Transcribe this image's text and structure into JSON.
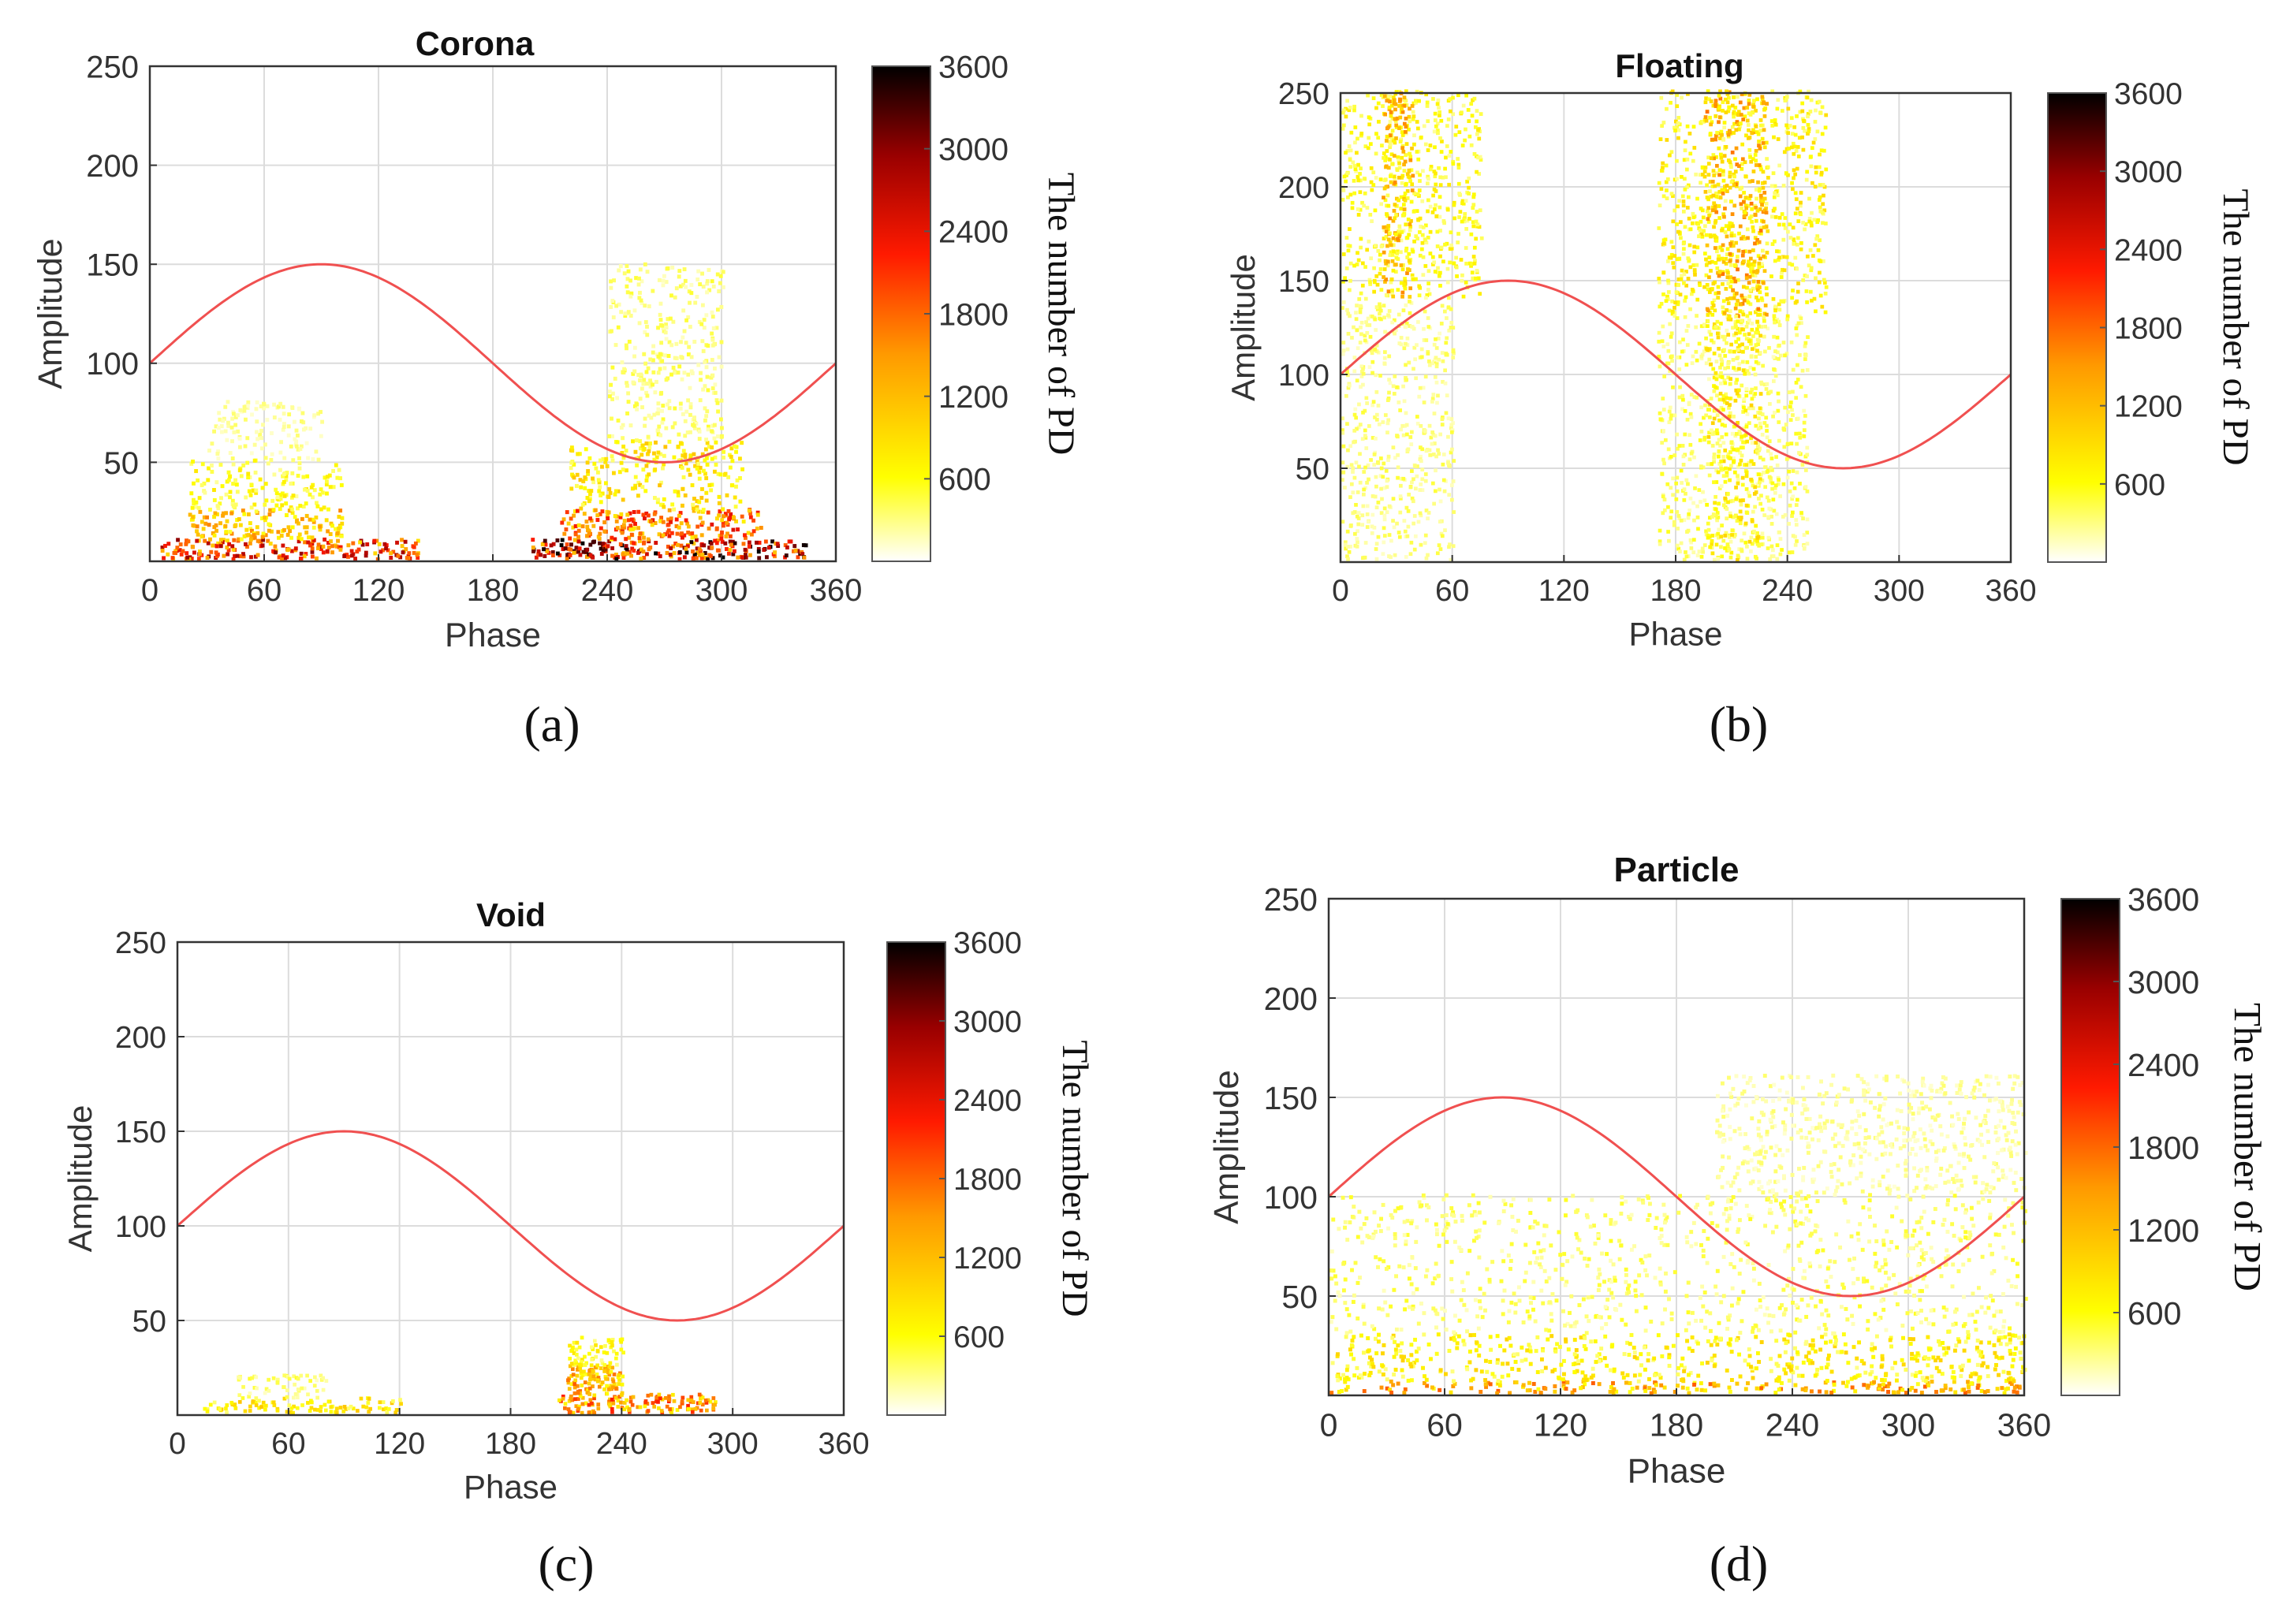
{
  "colorbar": {
    "ticks": [
      600,
      1200,
      1800,
      2400,
      3000,
      3600
    ],
    "label": "The number of PD",
    "range": [
      0,
      3600
    ],
    "stops": [
      "#ffffff",
      "#ffff00",
      "#ff9900",
      "#ff1a00",
      "#990000",
      "#000000"
    ]
  },
  "chart_data": [
    {
      "type": "heatmap",
      "title": "Corona",
      "caption": "(a)",
      "xlabel": "Phase",
      "ylabel": "Amplitude",
      "xlim": [
        0,
        360
      ],
      "ylim": [
        0,
        250
      ],
      "xticks": [
        0,
        60,
        120,
        180,
        240,
        300,
        360
      ],
      "yticks": [
        50,
        100,
        150,
        200,
        250
      ],
      "grid": true,
      "sine_reference": {
        "x": [
          0,
          90,
          180,
          270,
          360
        ],
        "y": [
          100,
          150,
          100,
          50,
          100
        ],
        "color": "#f05050"
      },
      "density_regions": [
        {
          "phase": [
            5,
            140
          ],
          "amplitude": [
            0,
            10
          ],
          "count": 2400
        },
        {
          "phase": [
            20,
            100
          ],
          "amplitude": [
            10,
            25
          ],
          "count": 1300
        },
        {
          "phase": [
            20,
            100
          ],
          "amplitude": [
            25,
            50
          ],
          "count": 650
        },
        {
          "phase": [
            30,
            90
          ],
          "amplitude": [
            50,
            80
          ],
          "count": 300
        },
        {
          "phase": [
            200,
            345
          ],
          "amplitude": [
            0,
            10
          ],
          "count": 3000
        },
        {
          "phase": [
            215,
            320
          ],
          "amplitude": [
            10,
            25
          ],
          "count": 2000
        },
        {
          "phase": [
            220,
            310
          ],
          "amplitude": [
            25,
            60
          ],
          "count": 900
        },
        {
          "phase": [
            240,
            300
          ],
          "amplitude": [
            60,
            150
          ],
          "count": 400
        }
      ]
    },
    {
      "type": "heatmap",
      "title": "Floating",
      "caption": "(b)",
      "xlabel": "Phase",
      "ylabel": "Amplitude",
      "xlim": [
        0,
        360
      ],
      "ylim": [
        0,
        250
      ],
      "xticks": [
        0,
        60,
        120,
        180,
        240,
        300,
        360
      ],
      "yticks": [
        50,
        100,
        150,
        200,
        250
      ],
      "grid": true,
      "sine_reference": {
        "x": [
          0,
          90,
          180,
          270,
          360
        ],
        "y": [
          100,
          150,
          100,
          50,
          100
        ],
        "color": "#f05050"
      },
      "density_regions": [
        {
          "phase": [
            0,
            75
          ],
          "amplitude": [
            140,
            250
          ],
          "count": 650
        },
        {
          "phase": [
            22,
            38
          ],
          "amplitude": [
            140,
            250
          ],
          "count": 1300
        },
        {
          "phase": [
            0,
            60
          ],
          "amplitude": [
            0,
            140
          ],
          "count": 380
        },
        {
          "phase": [
            170,
            260
          ],
          "amplitude": [
            130,
            250
          ],
          "count": 750
        },
        {
          "phase": [
            195,
            228
          ],
          "amplitude": [
            130,
            250
          ],
          "count": 1400
        },
        {
          "phase": [
            170,
            250
          ],
          "amplitude": [
            0,
            130
          ],
          "count": 450
        },
        {
          "phase": [
            195,
            225
          ],
          "amplitude": [
            0,
            130
          ],
          "count": 800
        }
      ]
    },
    {
      "type": "heatmap",
      "title": "Void",
      "caption": "(c)",
      "xlabel": "Phase",
      "ylabel": "Amplitude",
      "xlim": [
        0,
        360
      ],
      "ylim": [
        0,
        250
      ],
      "xticks": [
        0,
        60,
        120,
        180,
        240,
        300,
        360
      ],
      "yticks": [
        50,
        100,
        150,
        200,
        250
      ],
      "grid": true,
      "sine_reference": {
        "x": [
          0,
          90,
          180,
          270,
          360
        ],
        "y": [
          100,
          150,
          100,
          50,
          100
        ],
        "color": "#f05050"
      },
      "density_regions": [
        {
          "phase": [
            10,
            120
          ],
          "amplitude": [
            0,
            8
          ],
          "count": 900
        },
        {
          "phase": [
            30,
            80
          ],
          "amplitude": [
            8,
            20
          ],
          "count": 400
        },
        {
          "phase": [
            205,
            290
          ],
          "amplitude": [
            0,
            10
          ],
          "count": 1800
        },
        {
          "phase": [
            210,
            240
          ],
          "amplitude": [
            10,
            25
          ],
          "count": 1500
        },
        {
          "phase": [
            210,
            240
          ],
          "amplitude": [
            25,
            40
          ],
          "count": 700
        }
      ]
    },
    {
      "type": "heatmap",
      "title": "Particle",
      "caption": "(d)",
      "xlabel": "Phase",
      "ylabel": "Amplitude",
      "xlim": [
        0,
        360
      ],
      "ylim": [
        0,
        250
      ],
      "xticks": [
        0,
        60,
        120,
        180,
        240,
        300,
        360
      ],
      "yticks": [
        50,
        100,
        150,
        200,
        250
      ],
      "grid": true,
      "sine_reference": {
        "x": [
          0,
          90,
          180,
          270,
          360
        ],
        "y": [
          100,
          150,
          100,
          50,
          100
        ],
        "color": "#f05050"
      },
      "density_regions": [
        {
          "phase": [
            0,
            360
          ],
          "amplitude": [
            0,
            6
          ],
          "count": 1500
        },
        {
          "phase": [
            0,
            360
          ],
          "amplitude": [
            6,
            30
          ],
          "count": 800
        },
        {
          "phase": [
            0,
            360
          ],
          "amplitude": [
            30,
            100
          ],
          "count": 420
        },
        {
          "phase": [
            200,
            360
          ],
          "amplitude": [
            100,
            160
          ],
          "count": 280
        }
      ]
    }
  ]
}
